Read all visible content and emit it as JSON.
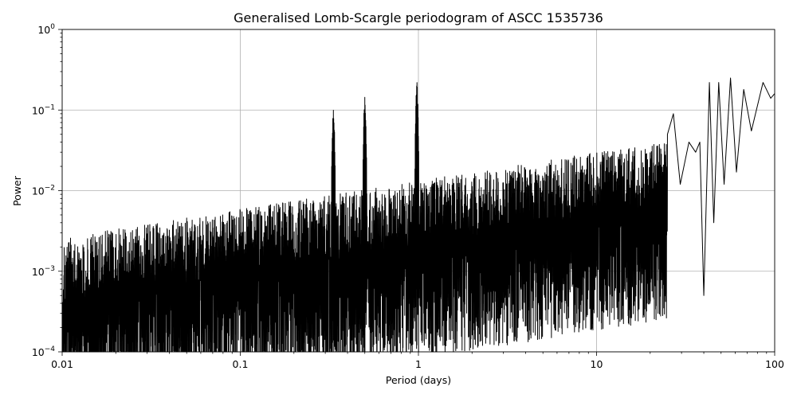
{
  "chart_data": {
    "type": "line",
    "title": "Generalised Lomb-Scargle periodogram of ASCC 1535736",
    "xlabel": "Period (days)",
    "ylabel": "Power",
    "x_scale": "log",
    "y_scale": "log",
    "xlim": [
      0.01,
      100
    ],
    "ylim": [
      0.0001,
      1
    ],
    "grid": true,
    "x_ticks": [
      {
        "value": 0.01,
        "label": "0.01"
      },
      {
        "value": 0.1,
        "label": "0.1"
      },
      {
        "value": 1,
        "label": "1"
      },
      {
        "value": 10,
        "label": "10"
      },
      {
        "value": 100,
        "label": "100"
      }
    ],
    "y_ticks": [
      {
        "value": 0.0001,
        "base": "10",
        "exp": "−4"
      },
      {
        "value": 0.001,
        "base": "10",
        "exp": "−3"
      },
      {
        "value": 0.01,
        "base": "10",
        "exp": "−2"
      },
      {
        "value": 0.1,
        "base": "10",
        "exp": "−1"
      },
      {
        "value": 1,
        "base": "10",
        "exp": "0"
      }
    ],
    "peaks": [
      {
        "period": 0.5,
        "power": 0.16
      },
      {
        "period": 0.98,
        "power": 0.24
      },
      {
        "period": 0.333,
        "power": 0.12
      },
      {
        "period": 43,
        "power": 0.22
      },
      {
        "period": 48,
        "power": 0.22
      },
      {
        "period": 56,
        "power": 0.25
      },
      {
        "period": 66,
        "power": 0.18
      },
      {
        "period": 88,
        "power": 0.22
      }
    ],
    "long_period_curve": [
      {
        "period": 25,
        "power": 0.05
      },
      {
        "period": 27,
        "power": 0.09
      },
      {
        "period": 29.5,
        "power": 0.012
      },
      {
        "period": 33,
        "power": 0.04
      },
      {
        "period": 36,
        "power": 0.03
      },
      {
        "period": 38,
        "power": 0.04
      },
      {
        "period": 40,
        "power": 0.0005
      },
      {
        "period": 43,
        "power": 0.22
      },
      {
        "period": 45.5,
        "power": 0.004
      },
      {
        "period": 48.5,
        "power": 0.22
      },
      {
        "period": 52,
        "power": 0.012
      },
      {
        "period": 56.5,
        "power": 0.25
      },
      {
        "period": 61,
        "power": 0.017
      },
      {
        "period": 67,
        "power": 0.18
      },
      {
        "period": 74,
        "power": 0.055
      },
      {
        "period": 86,
        "power": 0.22
      },
      {
        "period": 95,
        "power": 0.14
      },
      {
        "period": 100,
        "power": 0.16
      }
    ],
    "series_color": "#000000"
  }
}
